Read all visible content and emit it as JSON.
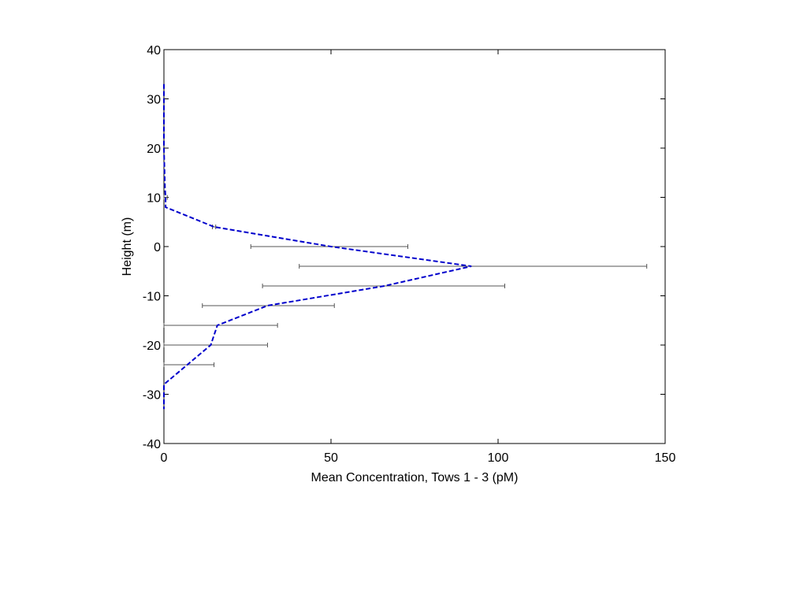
{
  "chart_data": {
    "type": "line",
    "title": "",
    "xlabel": "Mean Concentration, Tows 1 - 3 (pM)",
    "ylabel": "Height (m)",
    "xlim": [
      0,
      150
    ],
    "ylim": [
      -40,
      40
    ],
    "xticks": [
      0,
      50,
      100,
      150
    ],
    "yticks": [
      -40,
      -30,
      -20,
      -10,
      0,
      10,
      20,
      30,
      40
    ],
    "grid": false,
    "legend": "none",
    "colors": {
      "line": "#0000cc",
      "errorbar": "#555555",
      "axis": "#000000"
    },
    "series": [
      {
        "style": "dashed",
        "x": [
          0,
          0,
          0,
          0.3,
          0.5,
          0.5,
          0.5,
          15,
          50,
          92,
          66,
          31,
          16,
          14,
          7,
          0,
          0
        ],
        "y": [
          33,
          30,
          20,
          12,
          10,
          9,
          8,
          4,
          0,
          -4,
          -8,
          -12,
          -16,
          -20,
          -24,
          -28,
          -33
        ]
      }
    ],
    "error_bars": [
      {
        "y": 10,
        "xmin": 0,
        "xmax": 1
      },
      {
        "y": 4,
        "xmin": 14.5,
        "xmax": 15.5
      },
      {
        "y": 0,
        "xmin": 26,
        "xmax": 73
      },
      {
        "y": -4,
        "xmin": 40.5,
        "xmax": 144.5
      },
      {
        "y": -8,
        "xmin": 29.5,
        "xmax": 102
      },
      {
        "y": -12,
        "xmin": 11.5,
        "xmax": 51
      },
      {
        "y": -16,
        "xmin": 0,
        "xmax": 34
      },
      {
        "y": -20,
        "xmin": 0,
        "xmax": 31
      },
      {
        "y": -24,
        "xmin": 0,
        "xmax": 15
      }
    ]
  }
}
